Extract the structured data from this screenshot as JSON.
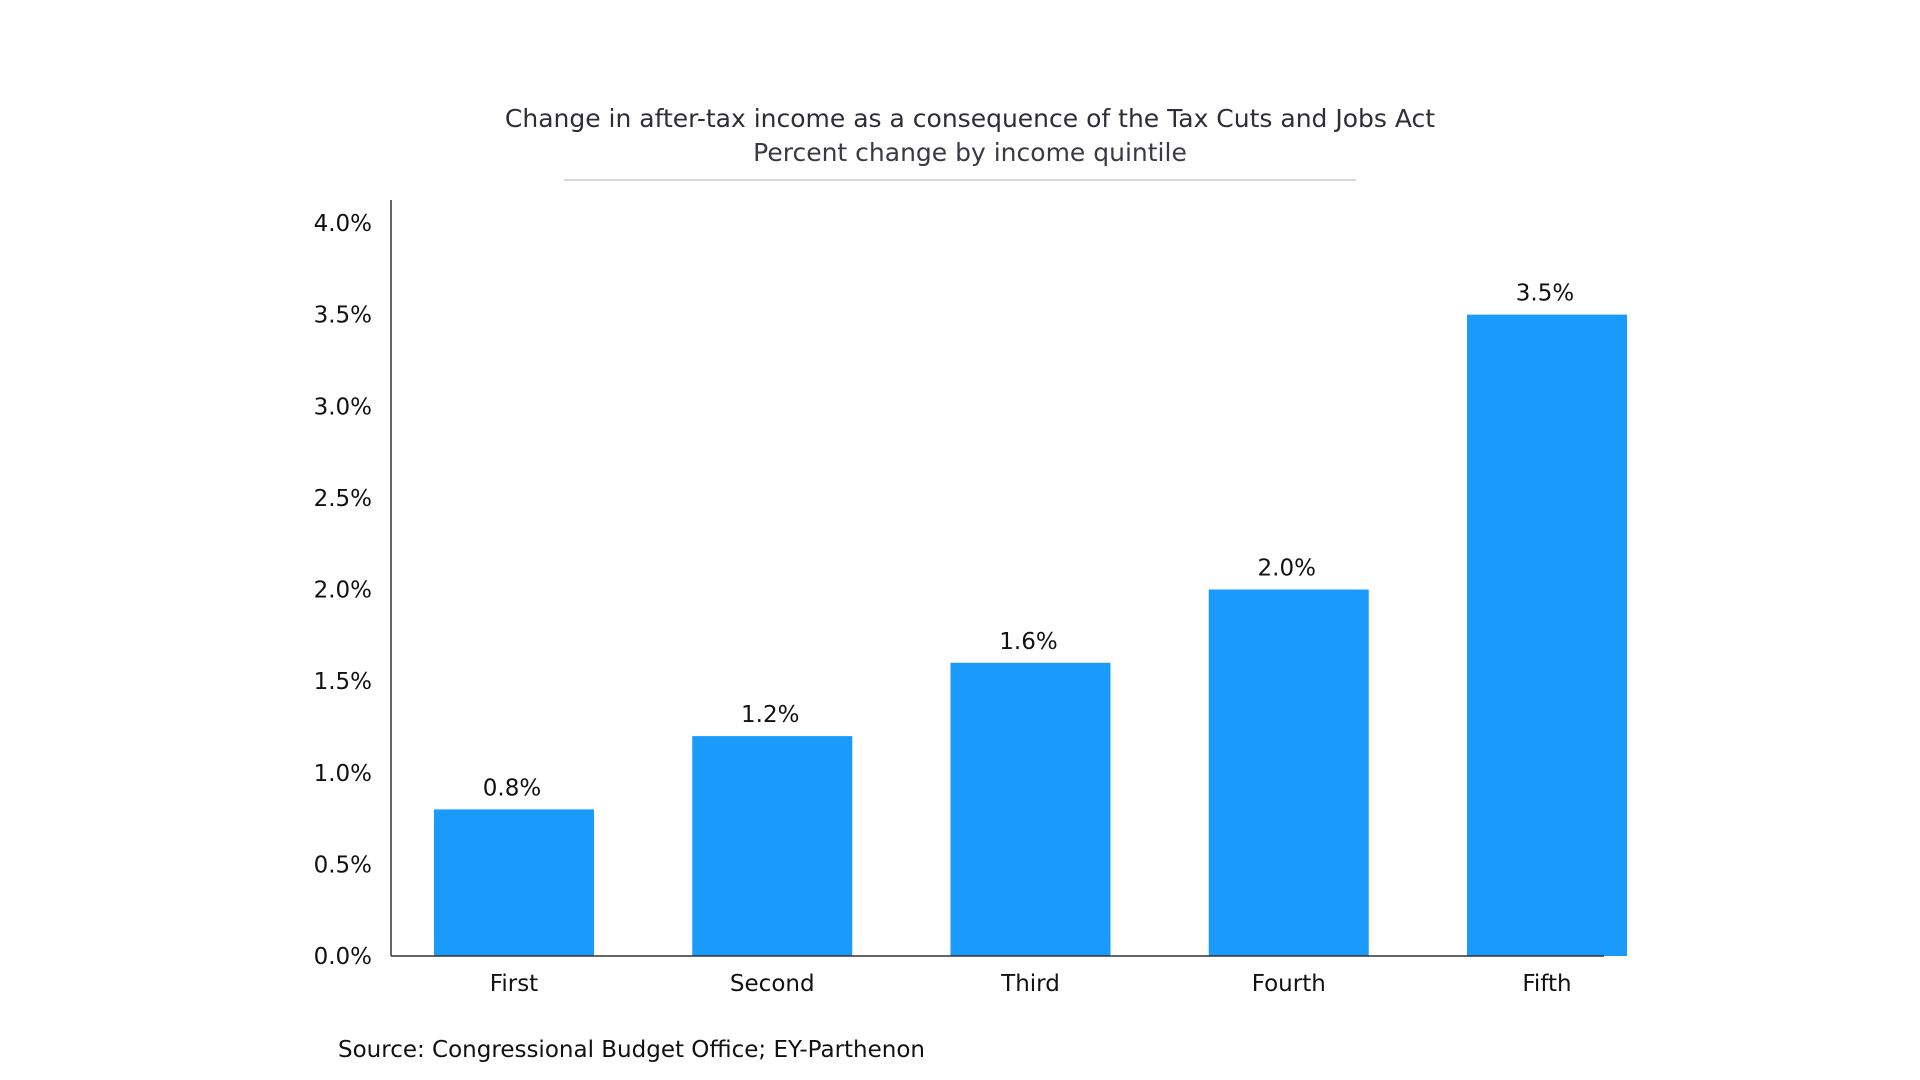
{
  "chart_data": {
    "type": "bar",
    "title": "Change in after-tax income as a consequence of the Tax Cuts and Jobs Act",
    "subtitle": "Percent change by income quintile",
    "categories": [
      "First",
      "Second",
      "Third",
      "Fourth",
      "Fifth"
    ],
    "values": [
      0.8,
      1.2,
      1.6,
      2.0,
      3.5
    ],
    "value_labels": [
      "0.8%",
      "1.2%",
      "1.6%",
      "2.0%",
      "3.5%"
    ],
    "y_ticks": [
      0.0,
      0.5,
      1.0,
      1.5,
      2.0,
      2.5,
      3.0,
      3.5,
      4.0
    ],
    "y_tick_labels": [
      "0.0%",
      "0.5%",
      "1.0%",
      "1.5%",
      "2.0%",
      "2.5%",
      "3.0%",
      "3.5%",
      "4.0%"
    ],
    "ylim": [
      0,
      4.0
    ],
    "xlabel": "",
    "ylabel": "",
    "grid": false,
    "legend": "none",
    "bar_color": "#1a9afa",
    "source": "Source: Congressional Budget Office; EY-Parthenon"
  }
}
